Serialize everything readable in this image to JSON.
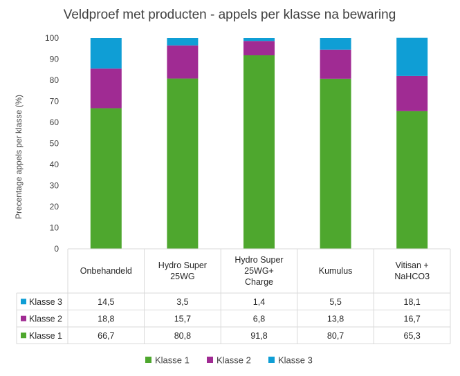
{
  "chart_data": {
    "type": "bar",
    "stacked": true,
    "title": "Veldproef met producten - appels per klasse na bewaring",
    "ylabel": "Precentage appels per klasse (%)",
    "xlabel": "",
    "ylim": [
      0,
      100
    ],
    "yticks": [
      0,
      10,
      20,
      30,
      40,
      50,
      60,
      70,
      80,
      90,
      100
    ],
    "grid": false,
    "legend": "bottom",
    "data_table": true,
    "categories": [
      [
        "Onbehandeld"
      ],
      [
        "Hydro Super",
        "25WG"
      ],
      [
        "Hydro Super",
        "25WG+",
        "Charge"
      ],
      [
        "Kumulus"
      ],
      [
        "Vitisan +",
        "NaHCO3"
      ]
    ],
    "series": [
      {
        "name": "Klasse 1",
        "color": "#4ea72e",
        "values": [
          66.7,
          80.8,
          91.8,
          80.7,
          65.3
        ],
        "labels": [
          "66,7",
          "80,8",
          "91,8",
          "80,7",
          "65,3"
        ]
      },
      {
        "name": "Klasse 2",
        "color": "#a02b93",
        "values": [
          18.8,
          15.7,
          6.8,
          13.8,
          16.7
        ],
        "labels": [
          "18,8",
          "15,7",
          "6,8",
          "13,8",
          "16,7"
        ]
      },
      {
        "name": "Klasse 3",
        "color": "#0f9ed5",
        "values": [
          14.5,
          3.5,
          1.4,
          5.5,
          18.1
        ],
        "labels": [
          "14,5",
          "3,5",
          "1,4",
          "5,5",
          "18,1"
        ]
      }
    ]
  }
}
